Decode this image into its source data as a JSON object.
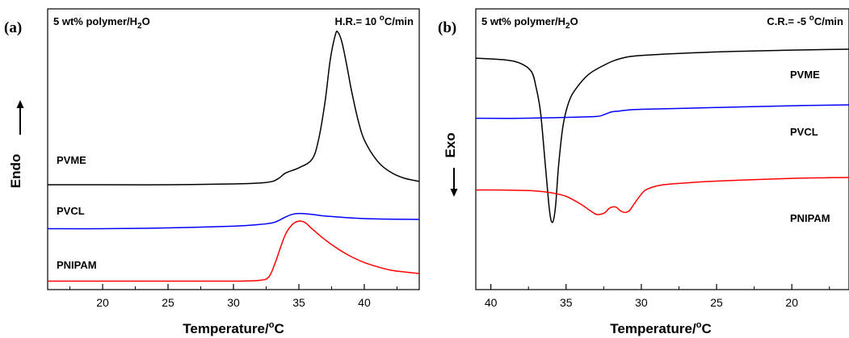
{
  "chart_data": [
    {
      "type": "line",
      "panel_label": "(a)",
      "sample_label": "5 wt% polymer/H",
      "sample_sub": "2",
      "sample_suffix": "O",
      "rate_label": "H.R.= 10 ",
      "rate_unit": "C/min",
      "xlabel": "Temperature/",
      "xlabel_unit": "C",
      "ylabel": "Endo",
      "ylabel_arrow": "up",
      "xlim": [
        15.8,
        44.2
      ],
      "x_direction": "ascending",
      "xticks": [
        20,
        25,
        30,
        35,
        40
      ],
      "grid": false,
      "series": [
        {
          "name": "PVME",
          "color": "#000000",
          "x": [
            15.8,
            20,
            25,
            30,
            32,
            33,
            33.5,
            34,
            35,
            36,
            36.5,
            37,
            37.4,
            37.8,
            38,
            38.3,
            38.7,
            39,
            39.5,
            40,
            41,
            42,
            43,
            44.2
          ],
          "y": [
            0.62,
            0.62,
            0.62,
            0.63,
            0.64,
            0.66,
            0.7,
            0.76,
            0.82,
            0.92,
            1.15,
            1.6,
            2.1,
            2.4,
            2.42,
            2.3,
            2.0,
            1.75,
            1.4,
            1.15,
            0.9,
            0.77,
            0.7,
            0.66
          ]
        },
        {
          "name": "PVCL",
          "color": "#0000ff",
          "x": [
            15.8,
            20,
            25,
            30,
            32,
            33,
            33.5,
            34,
            34.5,
            35,
            36,
            37,
            40,
            44.2
          ],
          "y": [
            0.1,
            0.1,
            0.11,
            0.13,
            0.15,
            0.17,
            0.2,
            0.24,
            0.27,
            0.28,
            0.27,
            0.25,
            0.22,
            0.21
          ]
        },
        {
          "name": "PNIPAM",
          "color": "#ff0000",
          "x": [
            15.8,
            20,
            25,
            30,
            32,
            32.7,
            33.2,
            33.6,
            34,
            34.5,
            35,
            35.5,
            36,
            37,
            38,
            39,
            40,
            41,
            42,
            43,
            44.2
          ],
          "y": [
            -0.52,
            -0.52,
            -0.52,
            -0.52,
            -0.51,
            -0.47,
            -0.3,
            -0.12,
            0.04,
            0.15,
            0.19,
            0.17,
            0.1,
            -0.03,
            -0.14,
            -0.23,
            -0.3,
            -0.35,
            -0.39,
            -0.41,
            -0.43
          ]
        }
      ]
    },
    {
      "type": "line",
      "panel_label": "(b)",
      "sample_label": "5 wt% polymer/H",
      "sample_sub": "2",
      "sample_suffix": "O",
      "rate_label": "C.R.= -5 ",
      "rate_unit": "C/min",
      "xlabel": "Temperature/",
      "xlabel_unit": "C",
      "ylabel": "Exo",
      "ylabel_arrow": "down",
      "xlim": [
        41,
        16.2
      ],
      "x_direction": "descending",
      "xticks": [
        40,
        35,
        30,
        25,
        20
      ],
      "grid": false,
      "series": [
        {
          "name": "PVME",
          "color": "#000000",
          "x": [
            41,
            39,
            38,
            37.3,
            37,
            36.7,
            36.4,
            36.1,
            35.9,
            35.7,
            35.5,
            35.2,
            34.8,
            34.3,
            33.5,
            32.5,
            31.5,
            30,
            25,
            20,
            16.2
          ],
          "y": [
            2.3,
            2.28,
            2.24,
            2.15,
            1.98,
            1.7,
            1.15,
            0.6,
            0.47,
            0.65,
            1.1,
            1.55,
            1.82,
            1.97,
            2.12,
            2.22,
            2.29,
            2.33,
            2.37,
            2.39,
            2.4
          ]
        },
        {
          "name": "PVCL",
          "color": "#0000ff",
          "x": [
            41,
            38,
            35,
            33,
            32.5,
            32,
            31.5,
            31,
            30,
            25,
            20,
            16.2
          ],
          "y": [
            1.63,
            1.63,
            1.64,
            1.65,
            1.67,
            1.7,
            1.71,
            1.72,
            1.73,
            1.75,
            1.77,
            1.78
          ]
        },
        {
          "name": "PNIPAM",
          "color": "#ff0000",
          "x": [
            41,
            39,
            37,
            36,
            35,
            34,
            33.4,
            33,
            32.7,
            32.4,
            32.1,
            31.7,
            31.4,
            31.1,
            30.8,
            30.5,
            30.2,
            29.8,
            29.3,
            28.5,
            27,
            25,
            20,
            16.2
          ],
          "y": [
            0.83,
            0.83,
            0.82,
            0.8,
            0.76,
            0.67,
            0.6,
            0.56,
            0.56,
            0.58,
            0.63,
            0.64,
            0.6,
            0.58,
            0.6,
            0.67,
            0.74,
            0.82,
            0.86,
            0.89,
            0.91,
            0.93,
            0.96,
            0.97
          ]
        }
      ]
    }
  ]
}
